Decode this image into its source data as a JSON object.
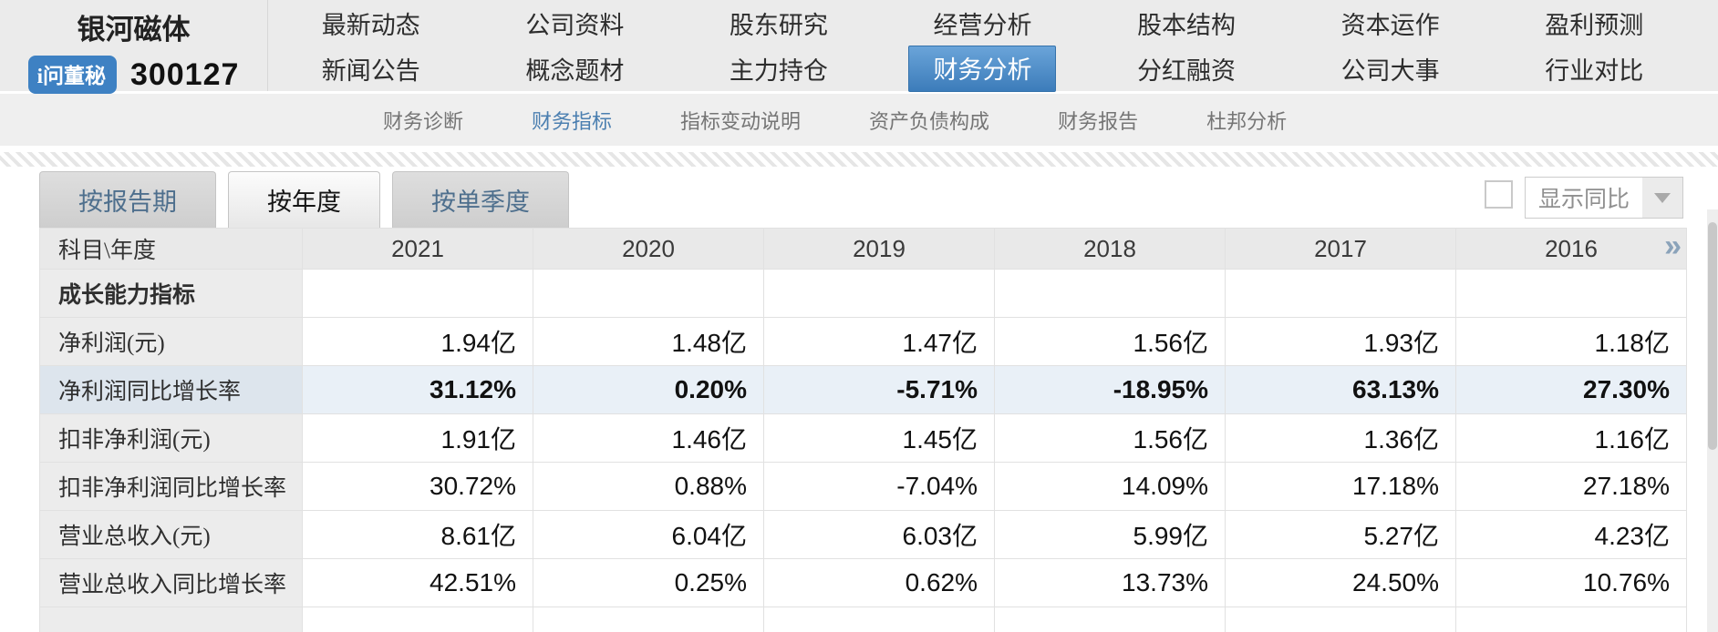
{
  "header": {
    "company_name": "银河磁体",
    "badge_label": "i问董秘",
    "stock_code": "300127",
    "nav_row1": [
      "最新动态",
      "公司资料",
      "股东研究",
      "经营分析",
      "股本结构",
      "资本运作",
      "盈利预测"
    ],
    "nav_row2": [
      "新闻公告",
      "概念题材",
      "主力持仓",
      "财务分析",
      "分红融资",
      "公司大事",
      "行业对比"
    ],
    "active_nav": "财务分析"
  },
  "subnav": {
    "items": [
      "财务诊断",
      "财务指标",
      "指标变动说明",
      "资产负债构成",
      "财务报告",
      "杜邦分析"
    ],
    "active": "财务指标"
  },
  "tabs": {
    "items": [
      "按报告期",
      "按年度",
      "按单季度"
    ],
    "active": "按年度"
  },
  "controls": {
    "show_yoy_checkbox_checked": false,
    "dropdown_label": "显示同比"
  },
  "table": {
    "corner_header": "科目\\年度",
    "years": [
      "2021",
      "2020",
      "2019",
      "2018",
      "2017",
      "2016"
    ],
    "expand_icon": "»",
    "section_header": "成长能力指标",
    "rows": [
      {
        "label": "净利润(元)",
        "highlight": false,
        "values": [
          "1.94亿",
          "1.48亿",
          "1.47亿",
          "1.56亿",
          "1.93亿",
          "1.18亿"
        ]
      },
      {
        "label": "净利润同比增长率",
        "highlight": true,
        "values": [
          "31.12%",
          "0.20%",
          "-5.71%",
          "-18.95%",
          "63.13%",
          "27.30%"
        ]
      },
      {
        "label": "扣非净利润(元)",
        "highlight": false,
        "values": [
          "1.91亿",
          "1.46亿",
          "1.45亿",
          "1.56亿",
          "1.36亿",
          "1.16亿"
        ]
      },
      {
        "label": "扣非净利润同比增长率",
        "highlight": false,
        "values": [
          "30.72%",
          "0.88%",
          "-7.04%",
          "14.09%",
          "17.18%",
          "27.18%"
        ]
      },
      {
        "label": "营业总收入(元)",
        "highlight": false,
        "values": [
          "8.61亿",
          "6.04亿",
          "6.03亿",
          "5.99亿",
          "5.27亿",
          "4.23亿"
        ]
      },
      {
        "label": "营业总收入同比增长率",
        "highlight": false,
        "values": [
          "42.51%",
          "0.25%",
          "0.62%",
          "13.73%",
          "24.50%",
          "10.76%"
        ]
      }
    ]
  },
  "colors": {
    "accent_blue": "#3e81c3",
    "active_nav_gradient_top": "#6aa4d9",
    "active_nav_gradient_bottom": "#3c7cba",
    "subnav_active_blue": "#4b7fb0",
    "band_gray": "#ebebeb",
    "highlight_row_bg": "#e9f0f7",
    "highlight_label_bg": "#dde5ed",
    "table_label_bg": "#ececec",
    "expand_icon_color": "#8ba3ba"
  }
}
